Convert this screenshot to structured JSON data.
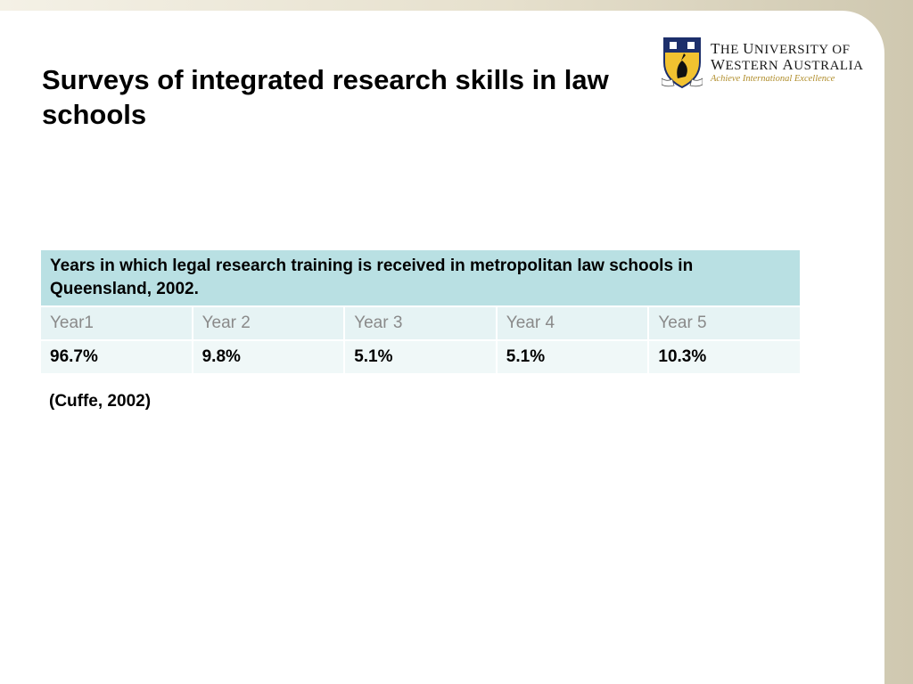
{
  "slide": {
    "title": "Surveys of integrated research skills in law schools",
    "citation": "(Cuffe, 2002)"
  },
  "logo": {
    "line1_first": "T",
    "line1_rest": "HE ",
    "line1_second": "U",
    "line1_rest2": "NIVERSITY OF",
    "line2_first": "W",
    "line2_rest": "ESTERN ",
    "line2_second": "A",
    "line2_rest2": "USTRALIA",
    "tagline": "Achieve International Excellence",
    "crest_icon": "university-crest-icon"
  },
  "table": {
    "caption": "Years in which legal research training is received in metropolitan law schools in Queensland, 2002.",
    "headers": [
      "Year1",
      "Year 2",
      "Year 3",
      "Year 4",
      "Year 5"
    ],
    "values": [
      "96.7%",
      "9.8%",
      "5.1%",
      "5.1%",
      "10.3%"
    ]
  },
  "colors": {
    "caption_bg": "#b9e0e3",
    "header_bg": "#e6f3f4",
    "value_bg": "#f0f8f8",
    "tagline": "#b08d2b"
  }
}
